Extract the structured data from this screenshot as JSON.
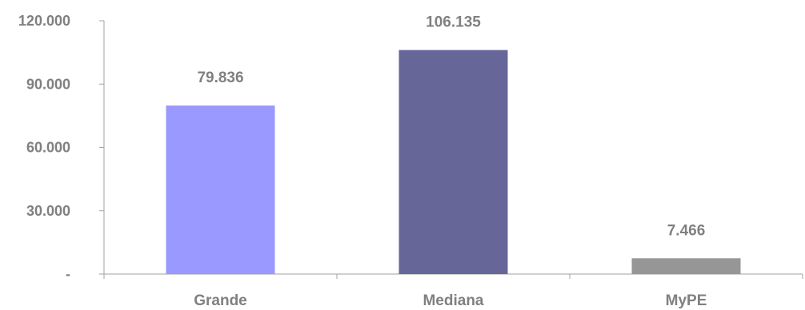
{
  "chart_data": {
    "type": "bar",
    "title": "",
    "xlabel": "",
    "ylabel": "",
    "categories": [
      "Grande",
      "Mediana",
      "MyPE"
    ],
    "values": [
      79836,
      106135,
      7466
    ],
    "data_labels": [
      "79.836",
      "106.135",
      "7.466"
    ],
    "bar_colors": [
      "#9999ff",
      "#666699",
      "#969696"
    ],
    "ylim": [
      0,
      120000
    ],
    "y_ticks": [
      0,
      30000,
      60000,
      90000,
      120000
    ],
    "y_tick_labels": [
      "-",
      "30.000",
      "60.000",
      "90.000",
      "120.000"
    ],
    "grid": false,
    "legend": "none"
  }
}
